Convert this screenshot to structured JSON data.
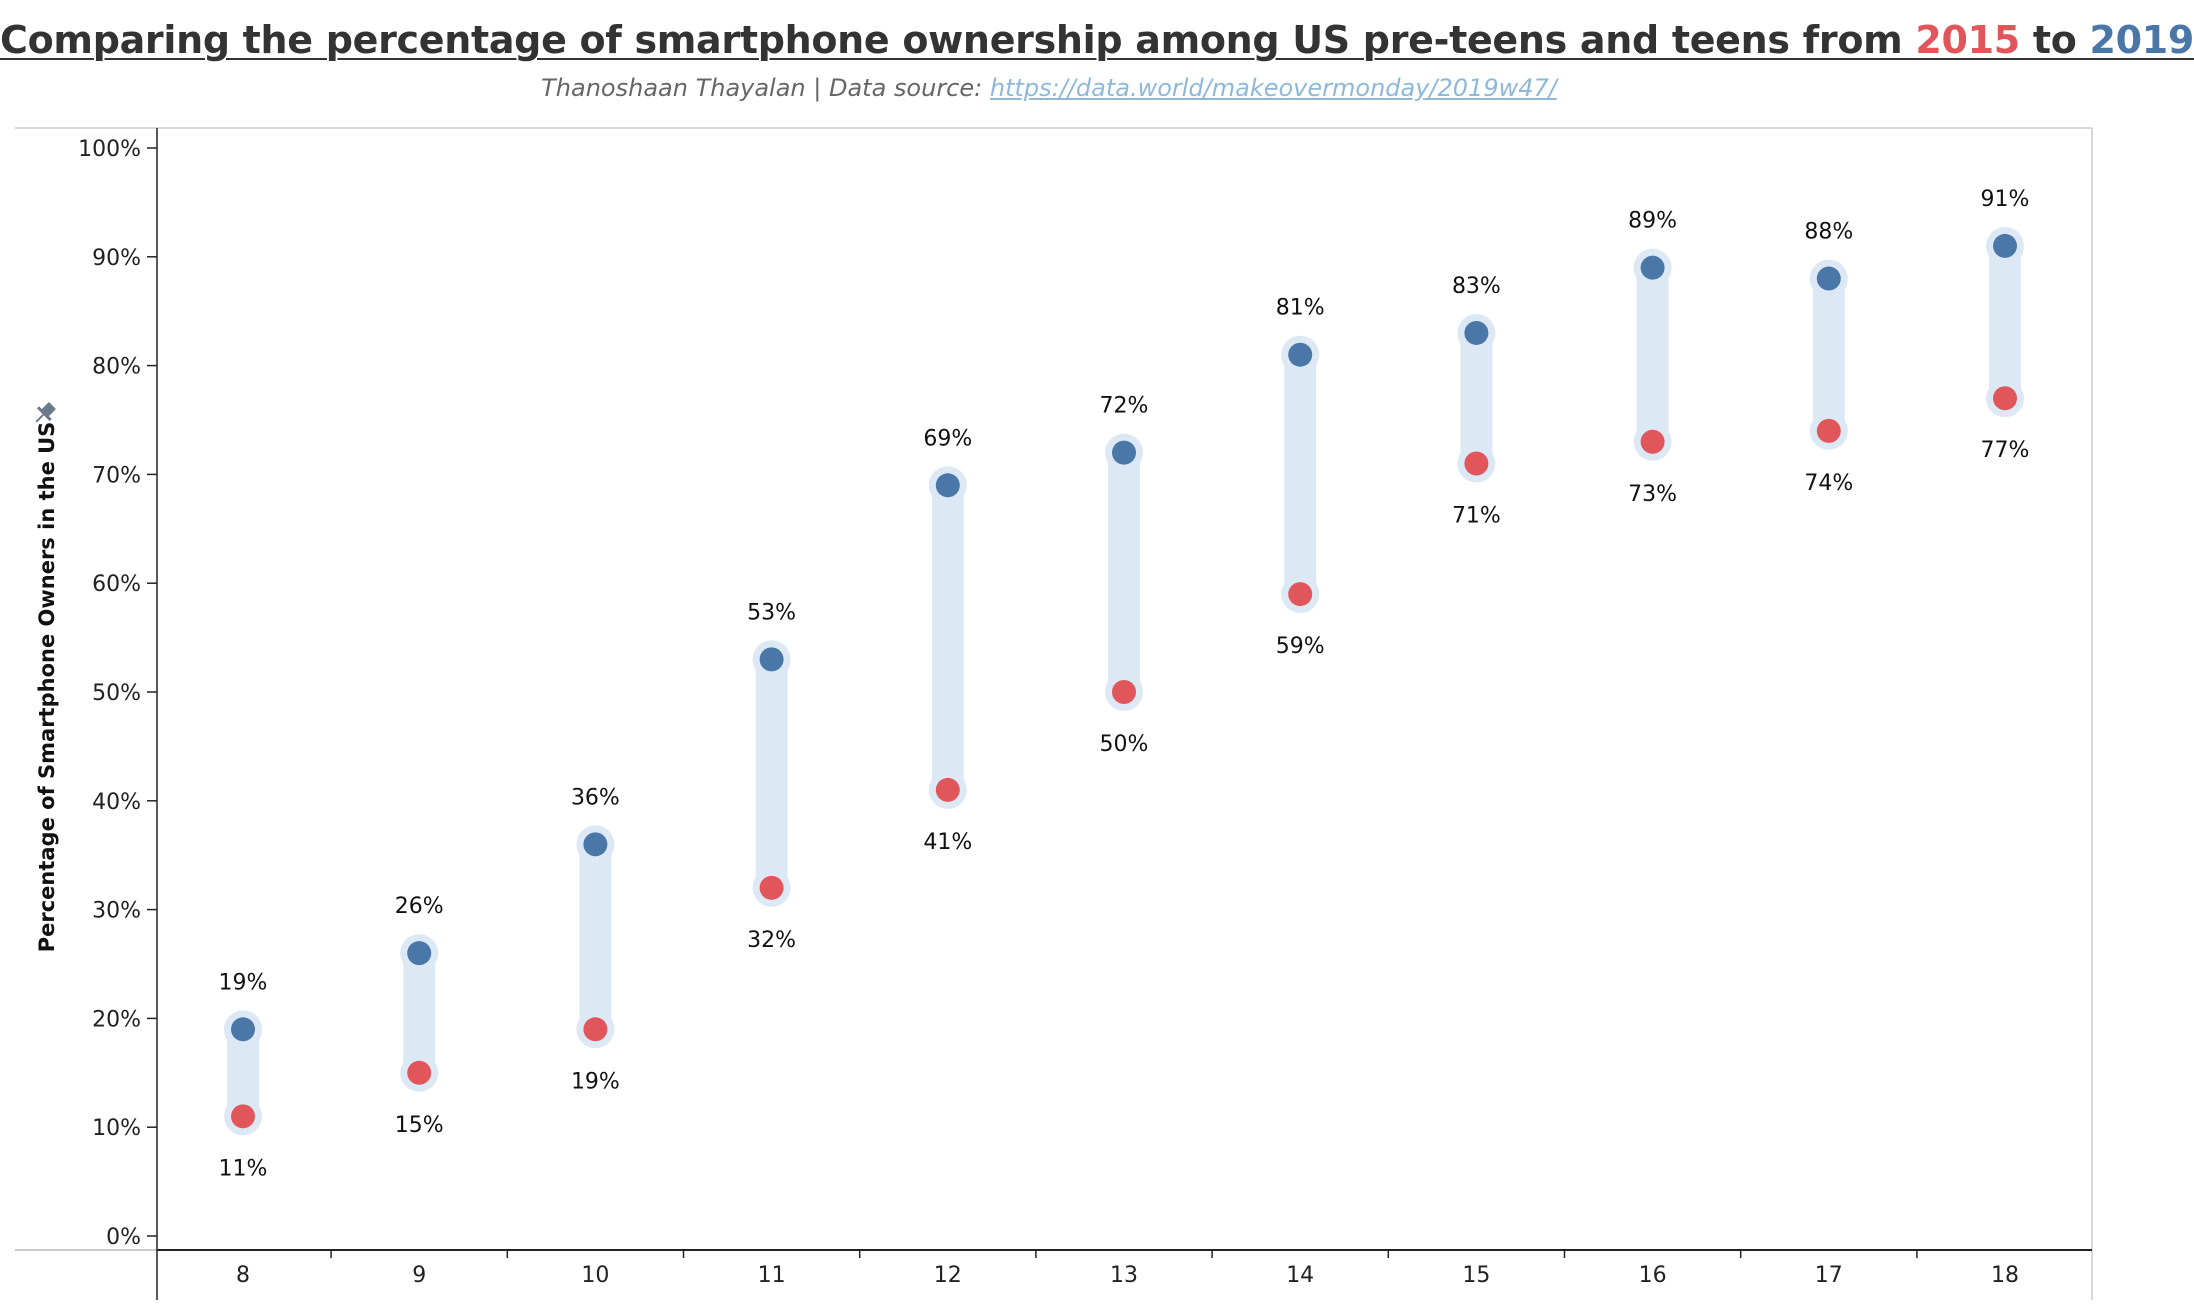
{
  "header": {
    "title_prefix": "Comparing the percentage of smartphone ownership among US pre-teens and teens from ",
    "title_year_start": "2015",
    "title_connector": " to ",
    "title_year_end": "2019",
    "subtitle_author": "Thanoshaan Thayalan | Data source: ",
    "subtitle_link": "https://data.world/makeovermonday/2019w47/"
  },
  "chart_data": {
    "type": "scatter",
    "subtype": "dumbbell",
    "title": "Comparing the percentage of smartphone ownership among US pre-teens and teens from 2015 to 2019",
    "xlabel": "",
    "ylabel": "Percentage of Smartphone Owners in the US",
    "categories": [
      "8",
      "9",
      "10",
      "11",
      "12",
      "13",
      "14",
      "15",
      "16",
      "17",
      "18"
    ],
    "series": [
      {
        "name": "2015",
        "color": "#e0565b",
        "values": [
          11,
          15,
          19,
          32,
          41,
          50,
          59,
          71,
          73,
          74,
          77
        ]
      },
      {
        "name": "2019",
        "color": "#4a76a8",
        "values": [
          19,
          26,
          36,
          53,
          69,
          72,
          81,
          83,
          89,
          88,
          91
        ]
      }
    ],
    "value_labels_2015": [
      "11%",
      "15%",
      "19%",
      "32%",
      "41%",
      "50%",
      "59%",
      "71%",
      "73%",
      "74%",
      "77%"
    ],
    "value_labels_2019": [
      "19%",
      "26%",
      "36%",
      "53%",
      "69%",
      "72%",
      "81%",
      "83%",
      "89%",
      "88%",
      "91%"
    ],
    "ylim": [
      0,
      100
    ],
    "yticks": [
      0,
      10,
      20,
      30,
      40,
      50,
      60,
      70,
      80,
      90,
      100
    ],
    "ytick_labels": [
      "0%",
      "10%",
      "20%",
      "30%",
      "40%",
      "50%",
      "60%",
      "70%",
      "80%",
      "90%",
      "100%"
    ],
    "connector_color": "#dce9f5",
    "grid": false,
    "legend": "title"
  }
}
